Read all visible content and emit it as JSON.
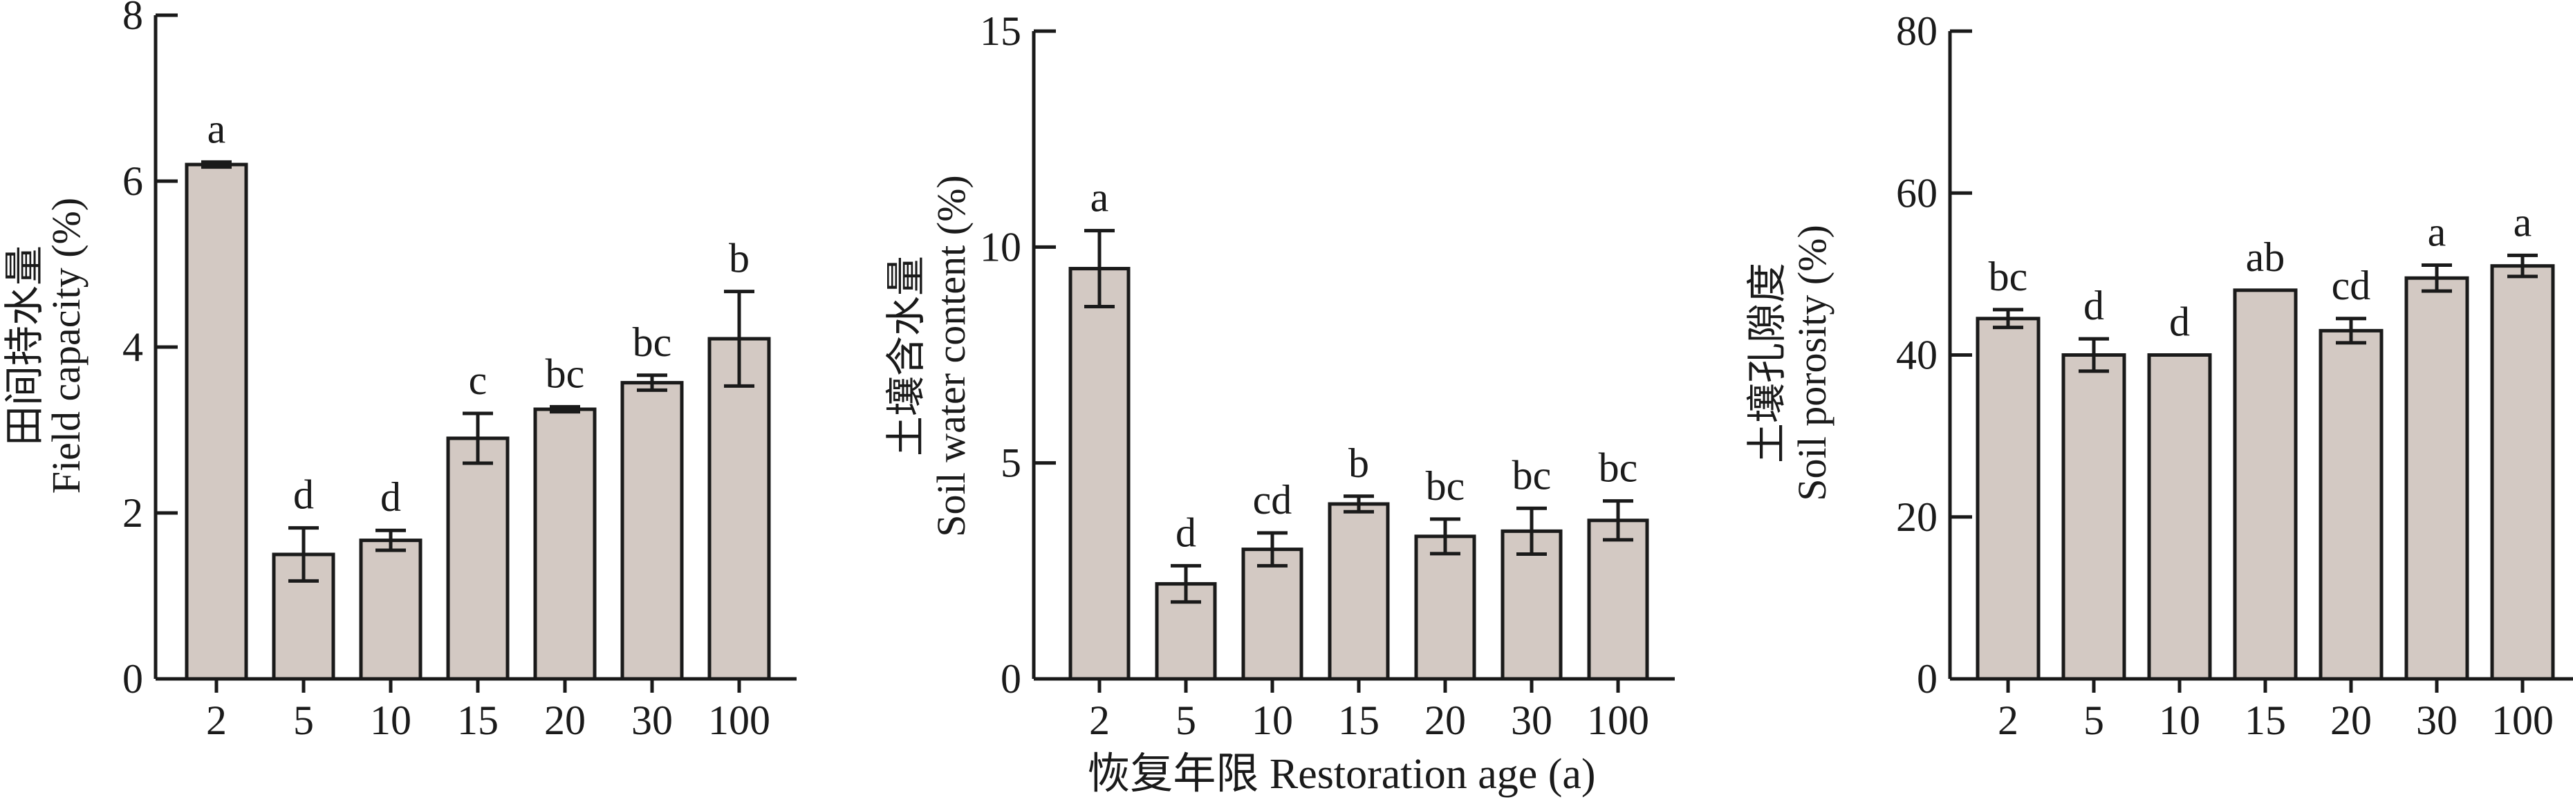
{
  "chart_data": [
    {
      "type": "bar",
      "ylabel_cn": "田间持水量",
      "ylabel_en": "Field capacity (%)",
      "categories": [
        "2",
        "5",
        "10",
        "15",
        "20",
        "30",
        "100"
      ],
      "values": [
        6.2,
        1.5,
        1.67,
        2.9,
        3.25,
        3.57,
        4.1
      ],
      "errors": [
        0.03,
        0.32,
        0.12,
        0.3,
        0.03,
        0.09,
        0.57
      ],
      "significance": [
        "a",
        "d",
        "d",
        "c",
        "bc",
        "bc",
        "b"
      ],
      "ylim": [
        0,
        8
      ],
      "yticks": [
        "0",
        "2",
        "4",
        "6",
        "8"
      ],
      "bar_color": "#d3c9c3"
    },
    {
      "type": "bar",
      "ylabel_cn": "土壤含水量",
      "ylabel_en": "Soil water content (%)",
      "categories": [
        "2",
        "5",
        "10",
        "15",
        "20",
        "30",
        "100"
      ],
      "values": [
        9.5,
        2.2,
        3.0,
        4.05,
        3.3,
        3.42,
        3.67
      ],
      "errors": [
        0.88,
        0.42,
        0.38,
        0.18,
        0.4,
        0.53,
        0.45
      ],
      "significance": [
        "a",
        "d",
        "cd",
        "b",
        "bc",
        "bc",
        "bc"
      ],
      "ylim": [
        0,
        15
      ],
      "yticks": [
        "0",
        "5",
        "10",
        "15"
      ],
      "bar_color": "#d3c9c3"
    },
    {
      "type": "bar",
      "ylabel_cn": "土壤孔隙度",
      "ylabel_en": "Soil porosity (%)",
      "categories": [
        "2",
        "5",
        "10",
        "15",
        "20",
        "30",
        "100"
      ],
      "values": [
        44.5,
        40.0,
        40.0,
        48.0,
        43.0,
        49.5,
        51.0
      ],
      "errors": [
        1.1,
        2.0,
        0.0,
        0.0,
        1.5,
        1.6,
        1.3
      ],
      "significance": [
        "bc",
        "d",
        "d",
        "ab",
        "cd",
        "a",
        "a"
      ],
      "ylim": [
        0,
        80
      ],
      "yticks": [
        "0",
        "20",
        "40",
        "60",
        "80"
      ],
      "bar_color": "#d3c9c3"
    }
  ],
  "shared_xlabel": "恢复年限 Restoration age (a)"
}
